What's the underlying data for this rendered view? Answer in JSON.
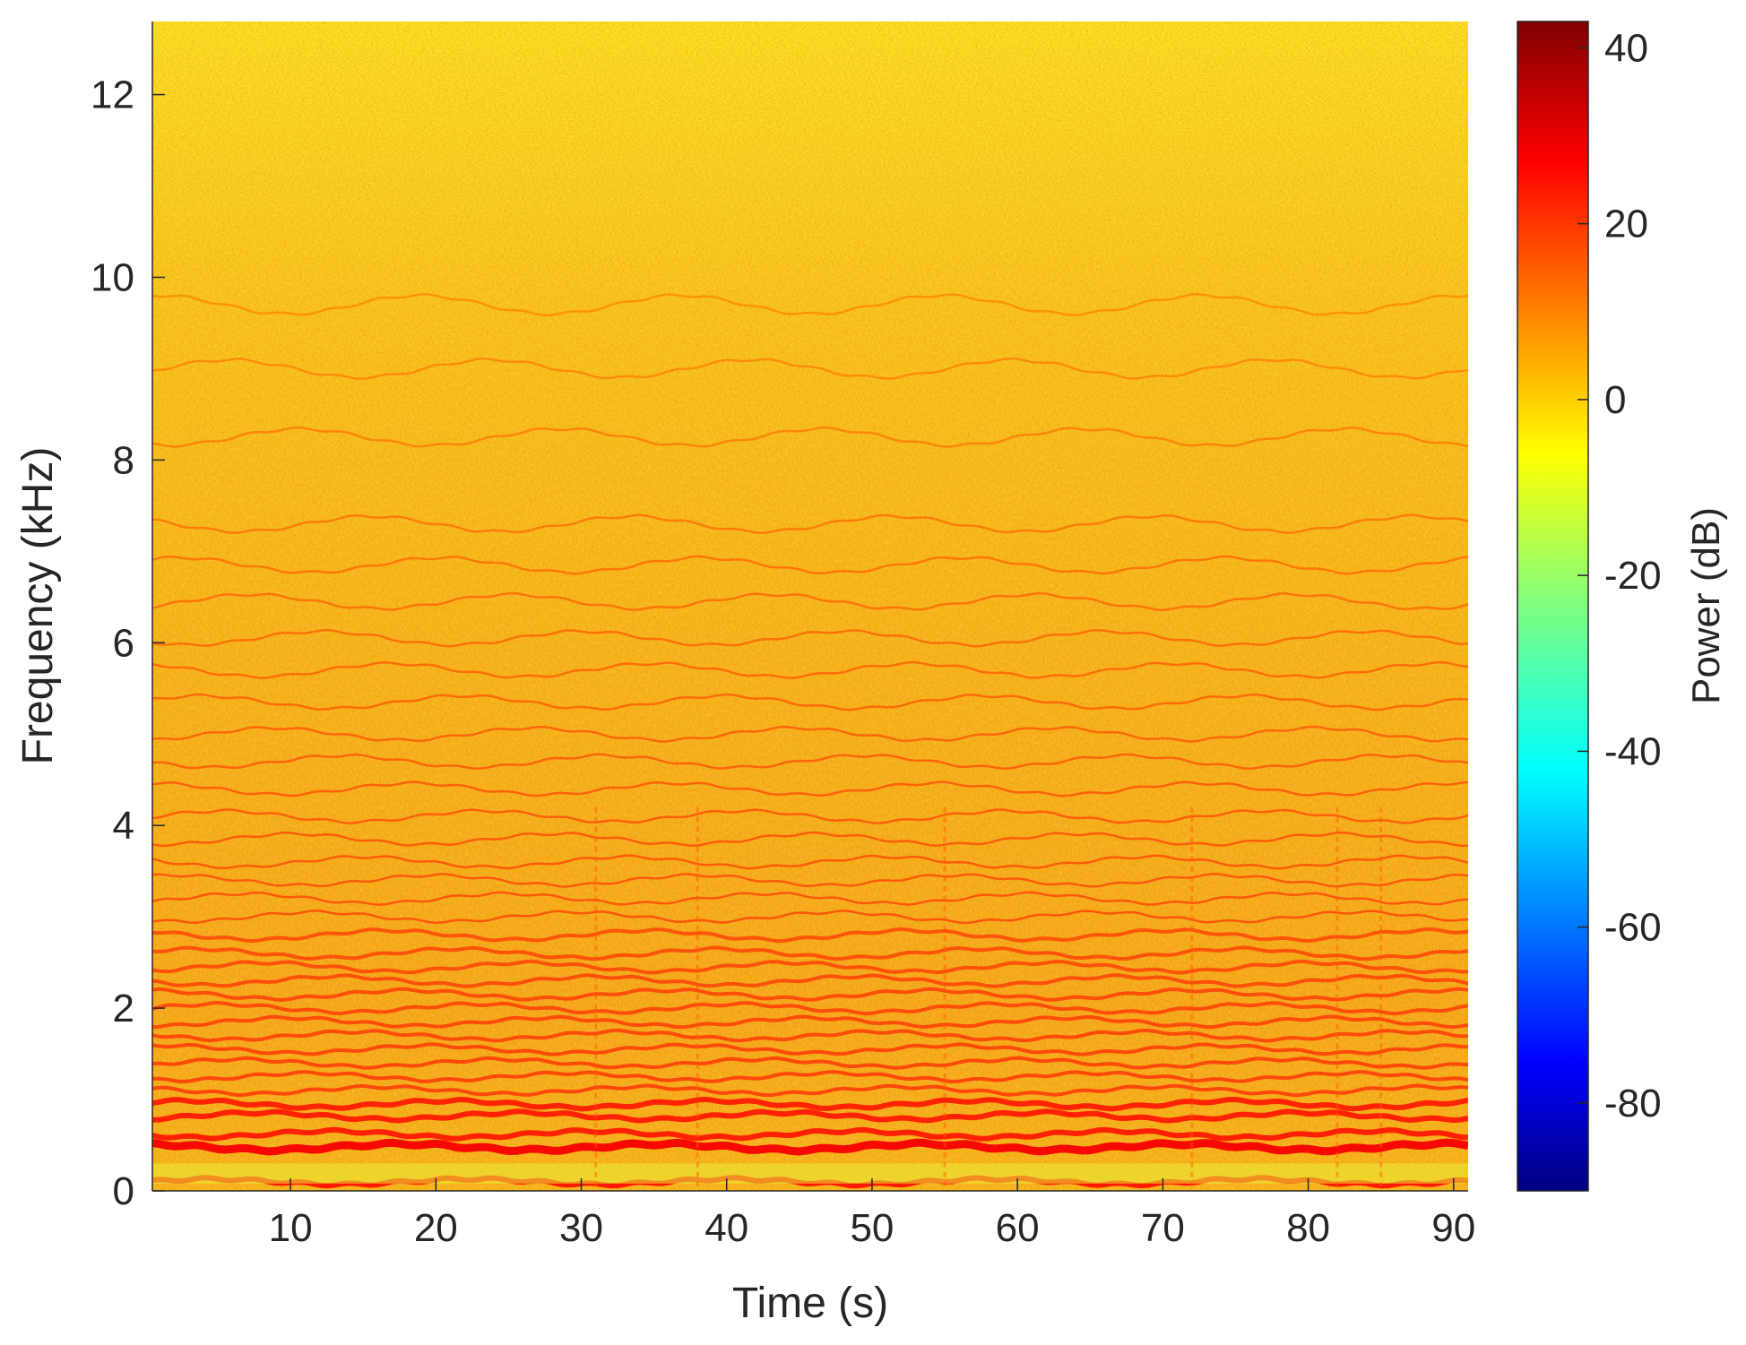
{
  "chart_data": {
    "type": "heatmap",
    "title": "",
    "xlabel": "Time (s)",
    "ylabel": "Frequency (kHz)",
    "xlim": [
      0.5,
      91
    ],
    "ylim": [
      0,
      12.8
    ],
    "xticks": [
      10,
      20,
      30,
      40,
      50,
      60,
      70,
      80,
      90
    ],
    "yticks": [
      0,
      2,
      4,
      6,
      8,
      10,
      12
    ],
    "grid": false,
    "colormap": "jet",
    "colorbar": {
      "label": "Power (dB)",
      "range": [
        -90,
        43
      ],
      "ticks": [
        40,
        20,
        0,
        -20,
        -40,
        -60,
        -80
      ]
    },
    "power_summary": {
      "background_dB": [
        -3,
        8
      ],
      "harmonic_bands_dB": [
        10,
        25
      ],
      "strongest_band_dB": 28
    },
    "harmonic_bands_khz": [
      0.1,
      0.48,
      0.62,
      0.82,
      0.95,
      1.1,
      1.25,
      1.4,
      1.55,
      1.7,
      1.85,
      2.0,
      2.15,
      2.3,
      2.45,
      2.6,
      2.8,
      3.0,
      3.2,
      3.4,
      3.6,
      3.85,
      4.1,
      4.4,
      4.7,
      5.0,
      5.35,
      5.7,
      6.05,
      6.45,
      6.85,
      7.3,
      8.25,
      9.0,
      9.7
    ],
    "transient_times_s": [
      31,
      38,
      55,
      72,
      82,
      85
    ]
  }
}
